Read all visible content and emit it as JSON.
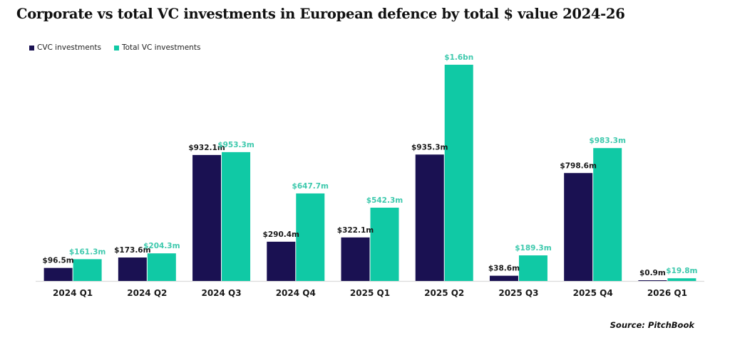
{
  "chart_data": {
    "type": "bar",
    "title": "Corporate vs total VC investments in European defence by total $ value 2024-26",
    "xlabel": "",
    "ylabel": "",
    "categories": [
      "2024 Q1",
      "2024 Q2",
      "2024 Q3",
      "2024 Q4",
      "2025 Q1",
      "2025 Q2",
      "2025 Q3",
      "2025 Q4",
      "2026 Q1"
    ],
    "series": [
      {
        "name": "CVC investments",
        "color": "#1a1152",
        "label_color": "#1a1a1a",
        "values": [
          96.5,
          173.6,
          932.1,
          290.4,
          322.1,
          935.3,
          38.6,
          798.6,
          0.9
        ],
        "labels": [
          "$96.5m",
          "$173.6m",
          "$932.1m",
          "$290.4m",
          "$322.1m",
          "$935.3m",
          "$38.6m",
          "$798.6m",
          "$0.9m"
        ]
      },
      {
        "name": "Total VC investments",
        "color": "#10c9a5",
        "label_color": "#3ec9ad",
        "values": [
          161.3,
          204.3,
          953.3,
          647.7,
          542.3,
          1600,
          189.3,
          983.3,
          19.8
        ],
        "labels": [
          "$161.3m",
          "$204.3m",
          "$953.3m",
          "$647.7m",
          "$542.3m",
          "$1.6bn",
          "$189.3m",
          "$983.3m",
          "$19.8m"
        ]
      }
    ],
    "units": "USD millions",
    "ylim": [
      0,
      1600
    ],
    "grid": false,
    "y_axis_visible": false,
    "legend_position": "top-left",
    "source": "Source: PitchBook"
  },
  "legend": {
    "items": [
      {
        "label": "CVC investments",
        "color": "#1a1152"
      },
      {
        "label": "Total VC investments",
        "color": "#10c9a5"
      }
    ]
  }
}
